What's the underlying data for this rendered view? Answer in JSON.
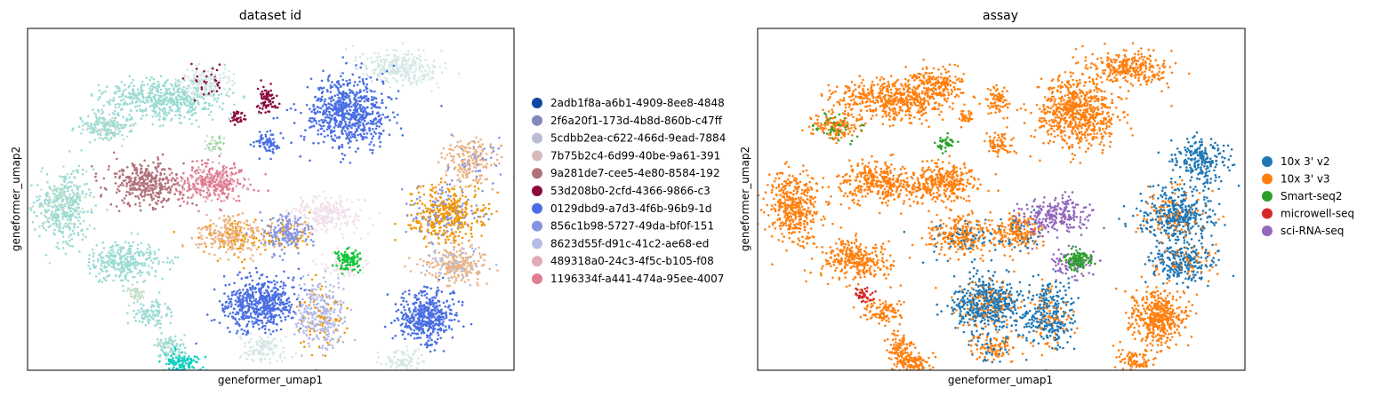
{
  "chart_data": [
    {
      "type": "scatter",
      "title": "dataset id",
      "xlabel": "geneformer_umap1",
      "ylabel": "geneformer_umap2",
      "ticks": "none",
      "legend_placement": "right",
      "legend": [
        {
          "name": "2adb1f8a-a6b1-4909-8ee8-4848",
          "color": "#0d47a1"
        },
        {
          "name": "2f6a20f1-173d-4b8d-860b-c47ff",
          "color": "#8389b8"
        },
        {
          "name": "5cdbb2ea-c622-466d-9ead-7884",
          "color": "#b9bed3"
        },
        {
          "name": "7b75b2c4-6d99-40be-9a61-391",
          "color": "#d9b9bc"
        },
        {
          "name": "9a281de7-cee5-4e80-8584-192",
          "color": "#b07179"
        },
        {
          "name": "53d208b0-2cfd-4366-9866-c3",
          "color": "#8b0a3e"
        },
        {
          "name": "0129dbd9-a7d3-4f6b-96b9-1d",
          "color": "#4a6fe3"
        },
        {
          "name": "856c1b98-5727-49da-bf0f-151",
          "color": "#8595e1"
        },
        {
          "name": "8623d55f-d91c-41c2-ae68-ed",
          "color": "#b4bbe6"
        },
        {
          "name": "489318a0-24c3-4f5c-b105-f08",
          "color": "#e4aab7"
        },
        {
          "name": "1196334f-a441-474a-95ee-4007",
          "color": "#e07b91"
        }
      ],
      "extra_colors": [
        "#9cdbd4",
        "#d6e8e6",
        "#eab384",
        "#f0e0ea",
        "#ef9708",
        "#11c638",
        "#0fcfc0",
        "#8dd593",
        "#c6dec7"
      ]
    },
    {
      "type": "scatter",
      "title": "assay",
      "xlabel": "geneformer_umap1",
      "ylabel": "geneformer_umap2",
      "ticks": "none",
      "legend_placement": "right",
      "legend": [
        {
          "name": "10x 3' v2",
          "color": "#1f77b4"
        },
        {
          "name": "10x 3' v3",
          "color": "#ff7f0e"
        },
        {
          "name": "Smart-seq2",
          "color": "#2ca02c"
        },
        {
          "name": "microwell-seq",
          "color": "#d62728"
        },
        {
          "name": "sci-RNA-seq",
          "color": "#9467bd"
        }
      ]
    }
  ]
}
